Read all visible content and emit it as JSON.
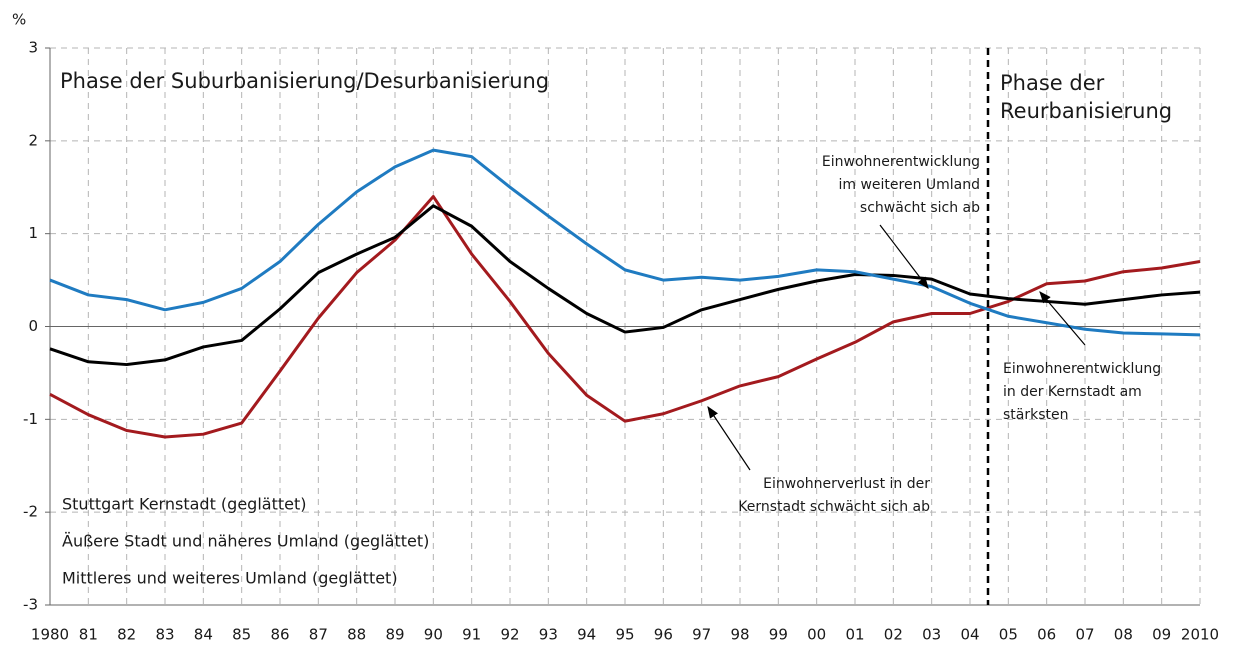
{
  "chart_data": {
    "type": "line",
    "y_axis_label": "%",
    "categories": [
      "1980",
      "81",
      "82",
      "83",
      "84",
      "85",
      "86",
      "87",
      "88",
      "89",
      "90",
      "91",
      "92",
      "93",
      "94",
      "95",
      "96",
      "97",
      "98",
      "99",
      "00",
      "01",
      "02",
      "03",
      "04",
      "05",
      "06",
      "07",
      "08",
      "09",
      "2010"
    ],
    "series": [
      {
        "name": "Stuttgart Kernstadt (geglättet)",
        "color": "#a31a1e",
        "values": [
          -0.73,
          -0.95,
          -1.12,
          -1.19,
          -1.16,
          -1.04,
          -0.48,
          0.09,
          0.58,
          0.93,
          1.4,
          0.78,
          0.27,
          -0.29,
          -0.74,
          -1.02,
          -0.94,
          -0.8,
          -0.64,
          -0.54,
          -0.35,
          -0.17,
          0.05,
          0.14,
          0.14,
          0.27,
          0.46,
          0.49,
          0.59,
          0.63,
          0.7
        ]
      },
      {
        "name": "Äußere Stadt und näheres Umland (geglättet)",
        "color": "#000000",
        "values": [
          -0.24,
          -0.38,
          -0.41,
          -0.36,
          -0.22,
          -0.15,
          0.19,
          0.58,
          0.78,
          0.96,
          1.3,
          1.08,
          0.7,
          0.41,
          0.14,
          -0.06,
          -0.01,
          0.18,
          0.29,
          0.4,
          0.49,
          0.56,
          0.55,
          0.51,
          0.35,
          0.3,
          0.27,
          0.24,
          0.29,
          0.34,
          0.37
        ]
      },
      {
        "name": "Mittleres und weiteres Umland (geglättet)",
        "color": "#1f7bc1",
        "values": [
          0.5,
          0.34,
          0.29,
          0.18,
          0.26,
          0.41,
          0.7,
          1.1,
          1.45,
          1.72,
          1.9,
          1.83,
          1.5,
          1.19,
          0.89,
          0.61,
          0.5,
          0.53,
          0.5,
          0.54,
          0.61,
          0.59,
          0.51,
          0.43,
          0.25,
          0.11,
          0.04,
          -0.03,
          -0.07,
          -0.08,
          -0.09
        ]
      }
    ],
    "ylim": [
      -3,
      3
    ],
    "yticks": [
      -3,
      -2,
      -1,
      0,
      1,
      2,
      3
    ],
    "grid": true,
    "phases": [
      [
        "Phase der Suburbanisierung/Desurbanisierung"
      ],
      [
        "Phase der",
        "Reurbanisierung"
      ]
    ],
    "annotations": [
      [
        "Einwohnerentwicklung",
        "im weiteren Umland",
        "schwächt sich ab"
      ],
      [
        "Einwohnerentwicklung",
        "in der Kernstadt am",
        "stärksten"
      ],
      [
        "Einwohnerverlust in der",
        "Kernstadt schwächt sich ab"
      ]
    ]
  }
}
